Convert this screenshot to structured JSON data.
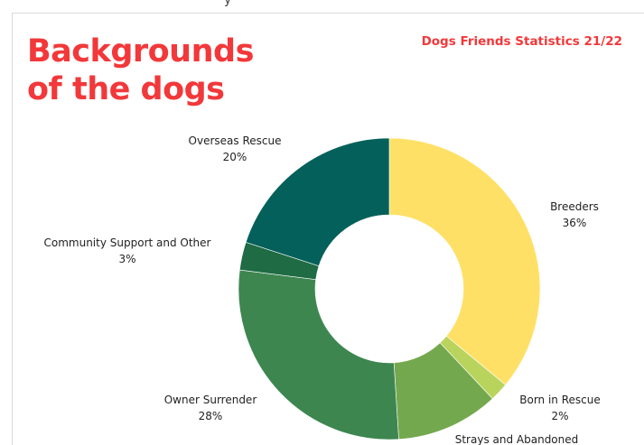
{
  "header": {
    "cut_text": "y",
    "title_line1": "Backgrounds",
    "title_line2": "of the dogs",
    "subtitle": "Dogs Friends Statistics 21/22"
  },
  "chart_data": {
    "type": "pie",
    "variant": "donut",
    "title": "Backgrounds of the dogs",
    "subtitle": "Dogs Friends Statistics 21/22",
    "start_angle_deg": 0,
    "direction": "clockwise",
    "slices": [
      {
        "label": "Breeders",
        "value": 36,
        "value_label": "36%",
        "color": "#ffe066"
      },
      {
        "label": "Born in Rescue",
        "value": 2,
        "value_label": "2%",
        "color": "#b9d45c"
      },
      {
        "label": "Strays and Abandoned",
        "value": 11,
        "value_label": "",
        "color": "#74a84e"
      },
      {
        "label": "Owner Surrender",
        "value": 28,
        "value_label": "28%",
        "color": "#3d8650"
      },
      {
        "label": "Community Support and Other",
        "value": 3,
        "value_label": "3%",
        "color": "#1e6b44"
      },
      {
        "label": "Overseas Rescue",
        "value": 20,
        "value_label": "20%",
        "color": "#03605a"
      }
    ]
  }
}
